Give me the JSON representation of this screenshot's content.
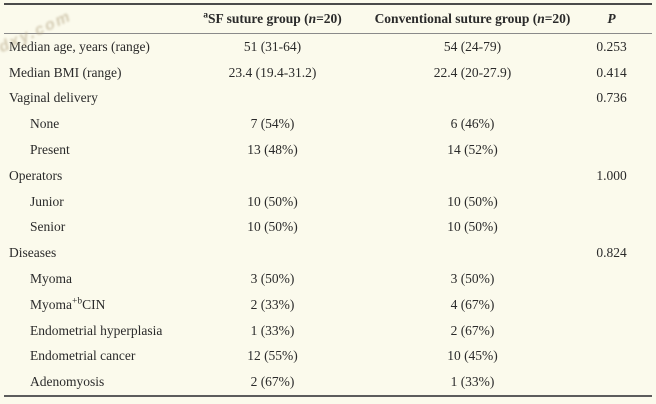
{
  "watermark": {
    "text": "dxy.com"
  },
  "table": {
    "header": {
      "col1": "",
      "col2": {
        "sup": "a",
        "pre": "SF suture group (",
        "italic": "n",
        "post": "=20)"
      },
      "col3": {
        "pre": "Conventional suture group (",
        "italic": "n",
        "post": "=20)"
      },
      "col4": "P"
    },
    "rows": [
      {
        "label": "Median age, years (range)",
        "indent": false,
        "sf": "51 (31-64)",
        "conv": "54 (24-79)",
        "p": "0.253"
      },
      {
        "label": "Median BMI (range)",
        "indent": false,
        "sf": "23.4 (19.4-31.2)",
        "conv": "22.4 (20-27.9)",
        "p": "0.414"
      },
      {
        "label": "Vaginal delivery",
        "indent": false,
        "sf": "",
        "conv": "",
        "p": "0.736"
      },
      {
        "label": "None",
        "indent": true,
        "sf": "7 (54%)",
        "conv": "6 (46%)",
        "p": ""
      },
      {
        "label": "Present",
        "indent": true,
        "sf": "13 (48%)",
        "conv": "14 (52%)",
        "p": ""
      },
      {
        "label": "Operators",
        "indent": false,
        "sf": "",
        "conv": "",
        "p": "1.000"
      },
      {
        "label": "Junior",
        "indent": true,
        "sf": "10 (50%)",
        "conv": "10 (50%)",
        "p": ""
      },
      {
        "label": "Senior",
        "indent": true,
        "sf": "10 (50%)",
        "conv": "10 (50%)",
        "p": ""
      },
      {
        "label": "Diseases",
        "indent": false,
        "sf": "",
        "conv": "",
        "p": "0.824"
      },
      {
        "label": "Myoma",
        "indent": true,
        "sf": "3 (50%)",
        "conv": "3 (50%)",
        "p": ""
      },
      {
        "label": "Myoma",
        "sup": "+b",
        "label_post": "CIN",
        "indent": true,
        "sf": "2 (33%)",
        "conv": "4 (67%)",
        "p": ""
      },
      {
        "label": "Endometrial hyperplasia",
        "indent": true,
        "sf": "1 (33%)",
        "conv": "2 (67%)",
        "p": ""
      },
      {
        "label": "Endometrial cancer",
        "indent": true,
        "sf": "12 (55%)",
        "conv": "10 (45%)",
        "p": ""
      },
      {
        "label": "Adenomyosis",
        "indent": true,
        "sf": "2 (67%)",
        "conv": "1 (33%)",
        "p": ""
      }
    ]
  }
}
